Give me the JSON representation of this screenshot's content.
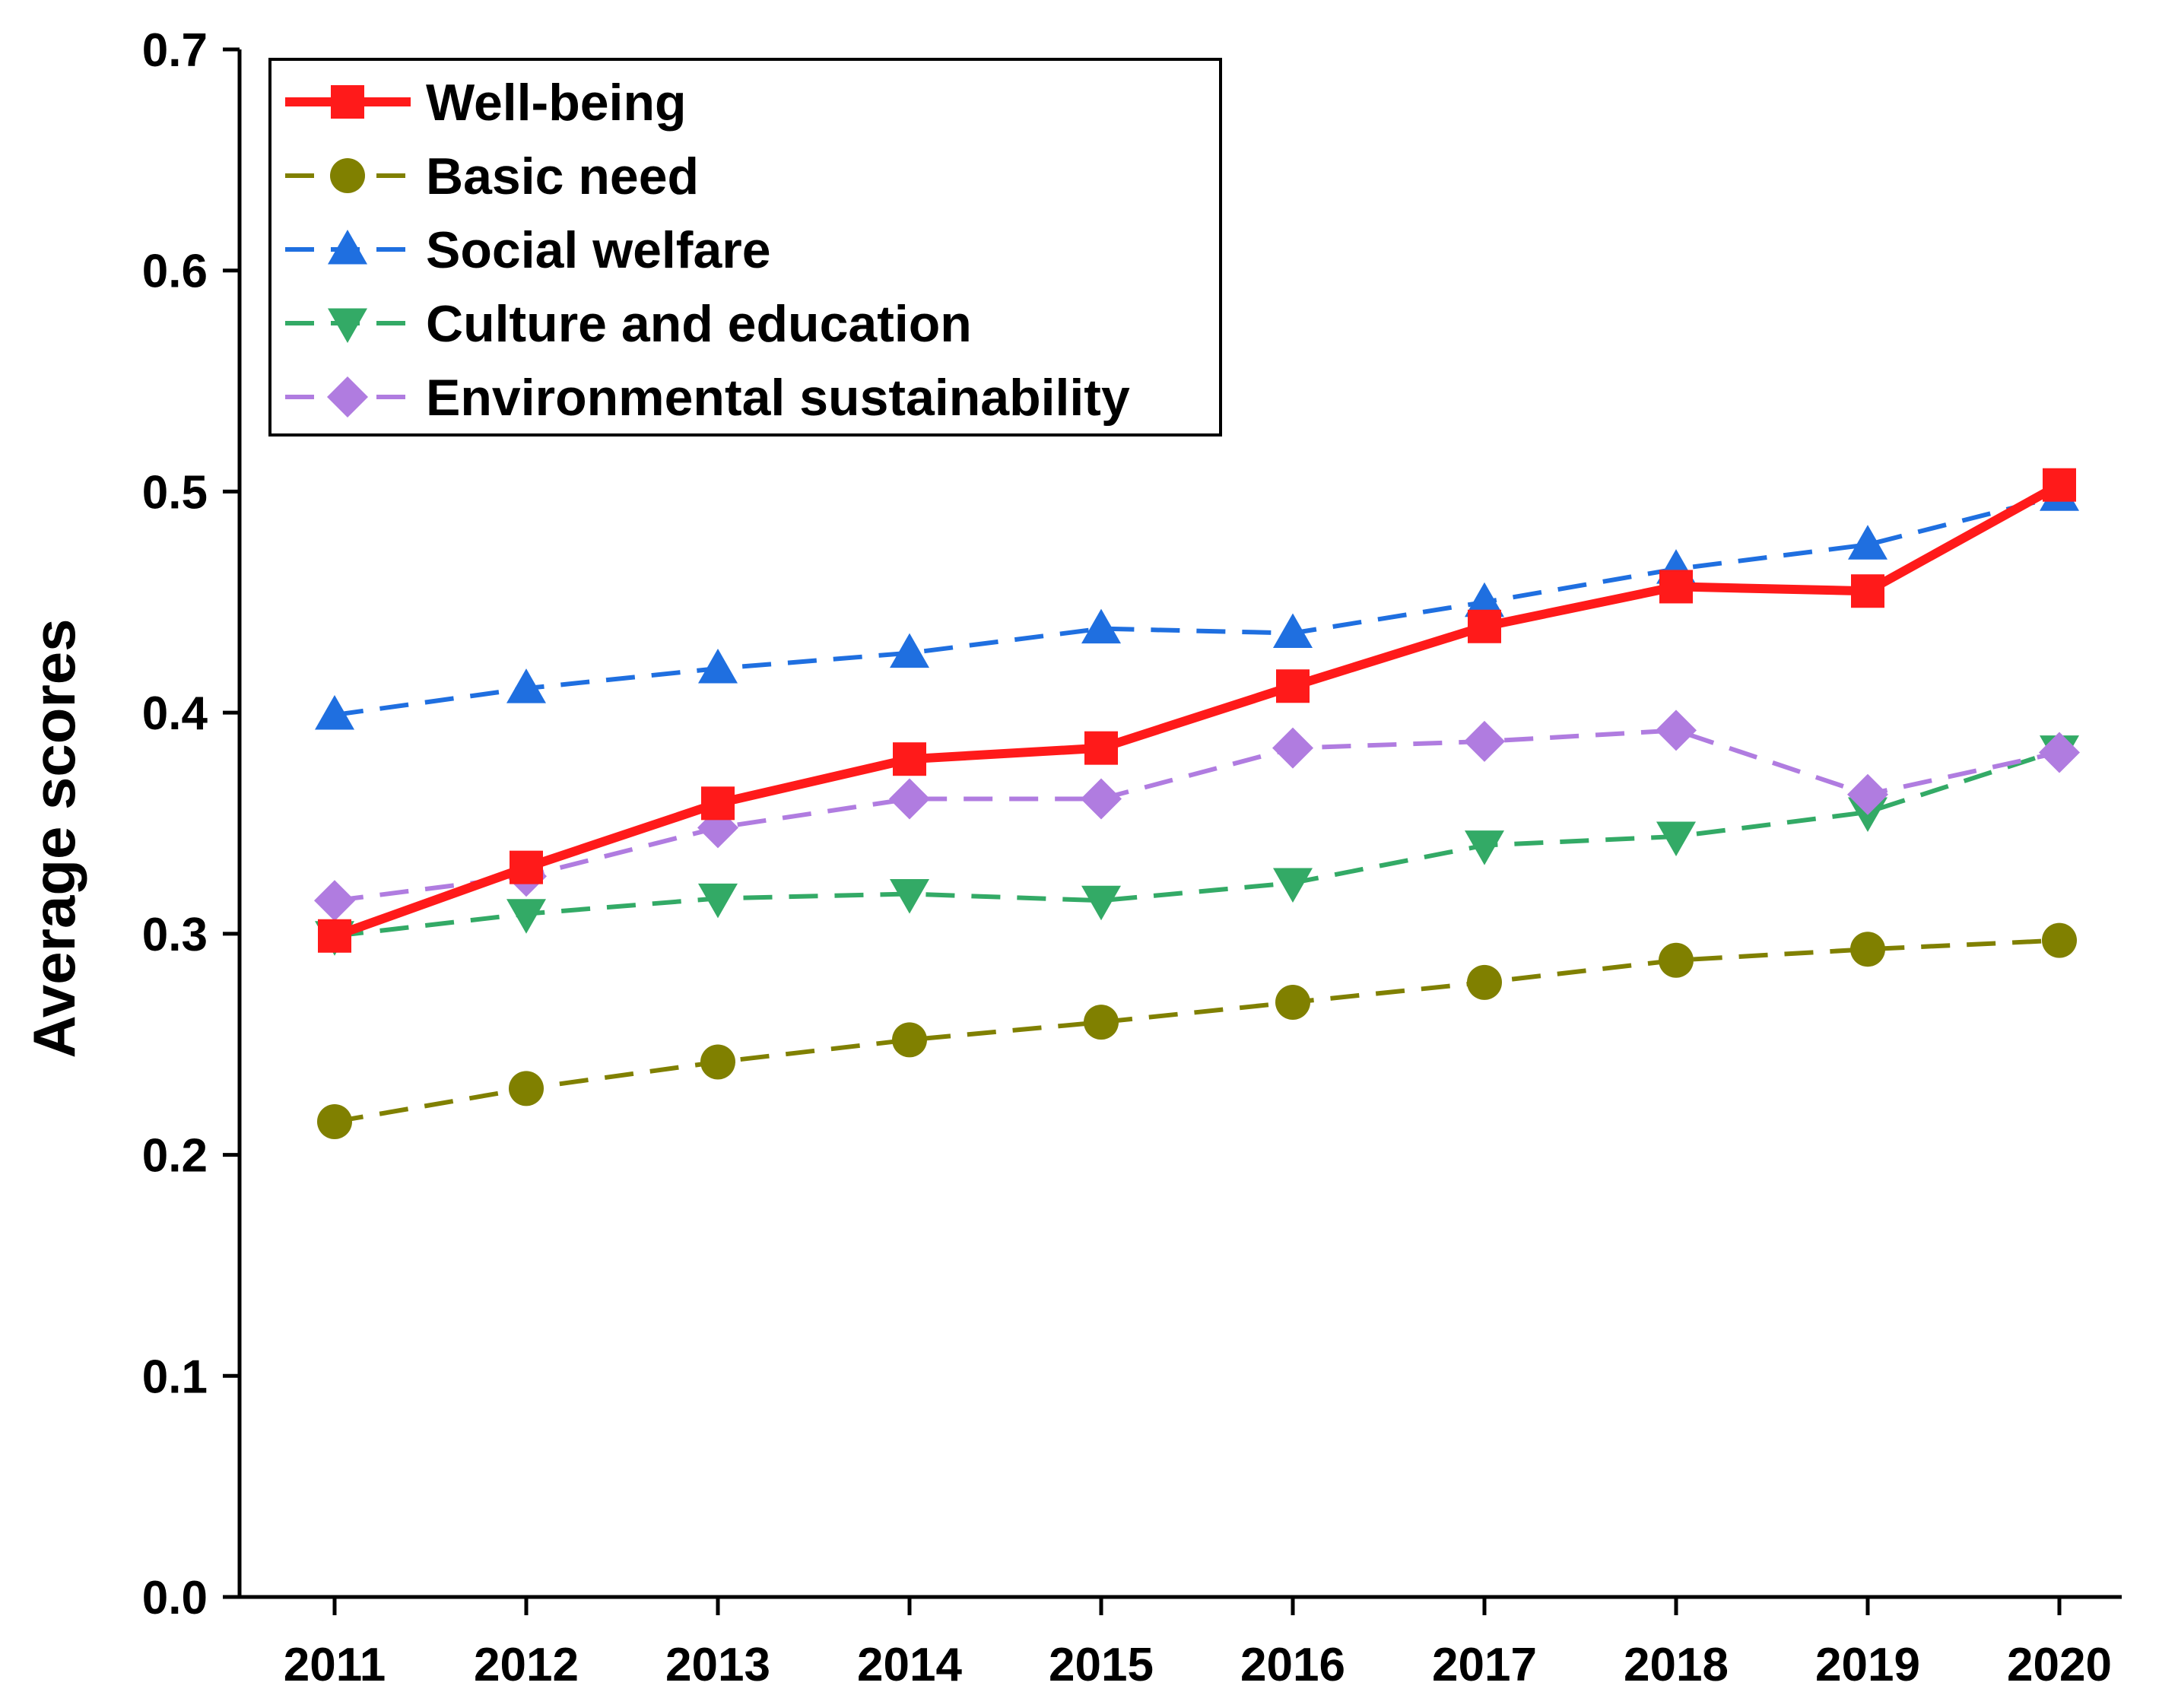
{
  "chart_data": {
    "type": "line",
    "title": "",
    "xlabel": "",
    "ylabel": "Average scores",
    "ylim": [
      0.0,
      0.7
    ],
    "yticks": [
      "0.0",
      "0.1",
      "0.2",
      "0.3",
      "0.4",
      "0.5",
      "0.6",
      "0.7"
    ],
    "categories": [
      "2011",
      "2012",
      "2013",
      "2014",
      "2015",
      "2016",
      "2017",
      "2018",
      "2019",
      "2020"
    ],
    "legend_position": "top-left",
    "grid": false,
    "series": [
      {
        "name": "Well-being",
        "color": "#ff1a1a",
        "line_style": "solid",
        "marker": "square",
        "values": [
          0.299,
          0.33,
          0.359,
          0.379,
          0.384,
          0.412,
          0.439,
          0.457,
          0.455,
          0.503
        ]
      },
      {
        "name": "Basic need",
        "color": "#808000",
        "line_style": "dashed",
        "marker": "circle",
        "values": [
          0.215,
          0.23,
          0.242,
          0.252,
          0.26,
          0.269,
          0.278,
          0.288,
          0.293,
          0.297
        ]
      },
      {
        "name": "Social welfare",
        "color": "#1f6fe0",
        "line_style": "dashed",
        "marker": "triangle-up",
        "values": [
          0.399,
          0.411,
          0.42,
          0.427,
          0.438,
          0.436,
          0.45,
          0.465,
          0.476,
          0.498
        ]
      },
      {
        "name": "Culture and education",
        "color": "#33aa66",
        "line_style": "dashed",
        "marker": "triangle-down",
        "values": [
          0.299,
          0.309,
          0.316,
          0.318,
          0.315,
          0.323,
          0.34,
          0.344,
          0.355,
          0.383
        ]
      },
      {
        "name": "Environmental sustainability",
        "color": "#b07ce0",
        "line_style": "dashed",
        "marker": "diamond",
        "values": [
          0.315,
          0.326,
          0.348,
          0.361,
          0.361,
          0.384,
          0.387,
          0.392,
          0.363,
          0.382
        ]
      }
    ]
  }
}
